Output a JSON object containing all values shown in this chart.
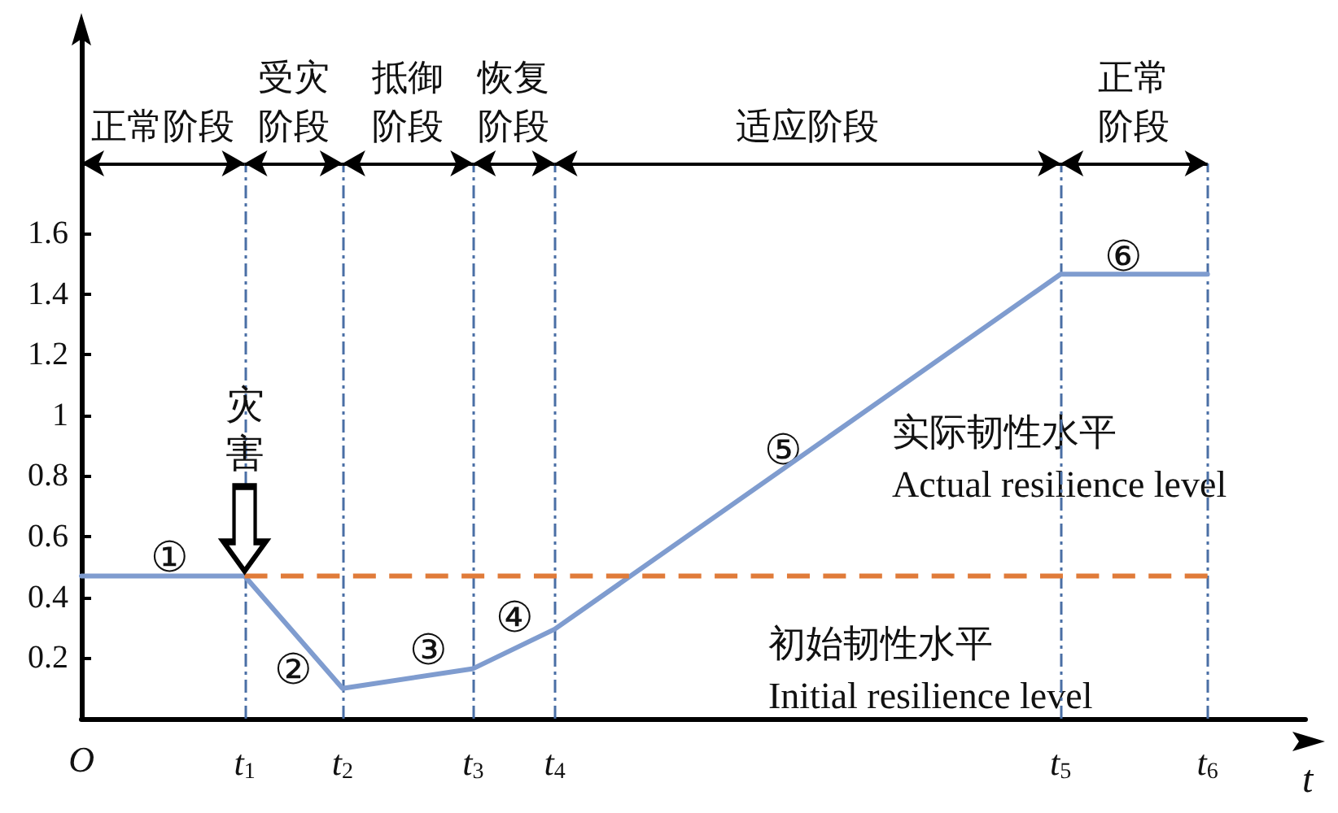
{
  "chart_data": {
    "type": "line",
    "xlabel": "t",
    "categories": [
      "O",
      null,
      null,
      null,
      null,
      null,
      null,
      null,
      null,
      null,
      "t$_{1}$",
      null,
      null,
      null,
      null,
      null,
      "t$_{2}$",
      null,
      null,
      null,
      null,
      null,
      null,
      null,
      "t$_{3}$",
      null,
      null,
      null,
      null,
      "t$_{4}$",
      null,
      null,
      null,
      null,
      null,
      null,
      null,
      null,
      null,
      null,
      null,
      null,
      null,
      null,
      null,
      null,
      null,
      null,
      null,
      null,
      null,
      null,
      null,
      null,
      null,
      null,
      null,
      null,
      null,
      null,
      "t$_{5}$",
      null,
      null,
      null,
      null,
      null,
      null,
      null,
      null,
      "t$_{6}$",
      null,
      null,
      null,
      null,
      null,
      null
    ],
    "series": [
      {
        "name": "实际韧性水平\nActual resilience level",
        "color": "#7f9ccf",
        "line_style": "solid",
        "values": [
          0.47,
          null,
          null,
          null,
          null,
          null,
          null,
          null,
          null,
          null,
          0.47,
          null,
          null,
          null,
          null,
          null,
          0.1,
          null,
          null,
          null,
          null,
          null,
          null,
          null,
          0.165,
          null,
          null,
          null,
          null,
          0.295,
          null,
          null,
          null,
          null,
          null,
          null,
          null,
          null,
          null,
          null,
          null,
          null,
          null,
          null,
          null,
          null,
          null,
          null,
          null,
          null,
          null,
          null,
          null,
          null,
          null,
          null,
          null,
          null,
          null,
          null,
          1.465,
          null,
          null,
          null,
          null,
          null,
          null,
          null,
          null,
          1.465,
          null,
          null,
          null,
          null,
          null,
          null
        ]
      },
      {
        "name": "初始韧性水平\nInitial resilience level",
        "color": "#e07b39",
        "line_style": "dashed",
        "values": [
          null,
          null,
          null,
          null,
          null,
          null,
          null,
          null,
          null,
          null,
          0.47,
          null,
          null,
          null,
          null,
          null,
          null,
          null,
          null,
          null,
          null,
          null,
          null,
          null,
          null,
          null,
          null,
          null,
          null,
          null,
          null,
          null,
          null,
          null,
          null,
          null,
          null,
          null,
          null,
          null,
          null,
          null,
          null,
          null,
          null,
          null,
          null,
          null,
          null,
          null,
          null,
          null,
          null,
          null,
          null,
          null,
          null,
          null,
          null,
          null,
          null,
          null,
          null,
          null,
          null,
          null,
          null,
          null,
          null,
          0.47,
          null,
          null,
          null,
          null,
          null,
          null
        ]
      }
    ],
    "ylim": [
      0,
      2.24
    ],
    "yticks": [
      0.2,
      0.4,
      0.6,
      0.8,
      1.0,
      1.2,
      1.4,
      1.6
    ],
    "grid": "x",
    "marker": "none",
    "annotations": [
      "正常阶段",
      "受灾阶段",
      "抵御阶段",
      "恢复阶段",
      "适应阶段",
      "正常阶段",
      "①",
      "②",
      "③",
      "④",
      "⑤",
      "⑥",
      {
        "text": "灾害",
        "x": "t$_{1}$",
        "y": 0.47
      }
    ]
  }
}
